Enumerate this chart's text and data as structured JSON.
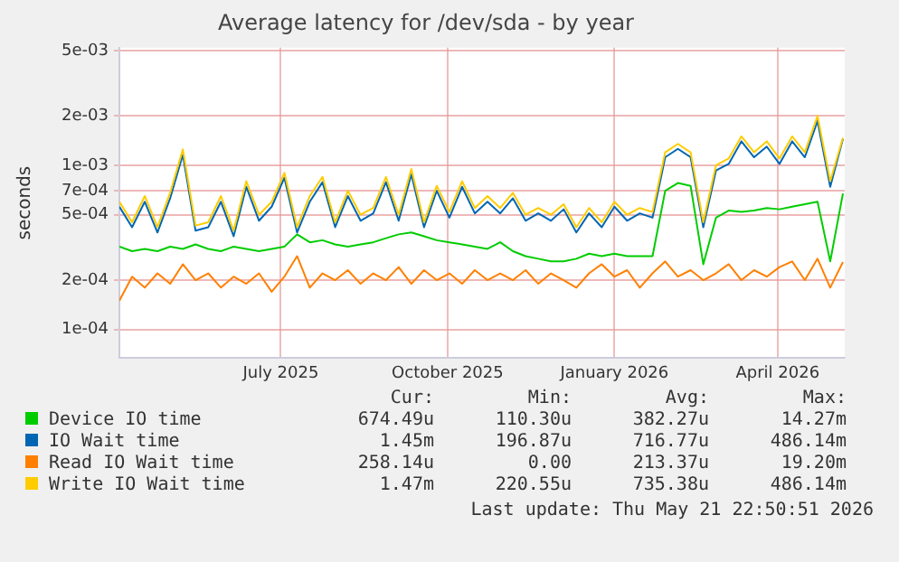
{
  "chart_data": {
    "type": "line",
    "title": "Average latency for /dev/sda - by year",
    "ylabel": "seconds",
    "log": "y",
    "grid": true,
    "legend": "bottom",
    "marker": "none",
    "line_style": "solid",
    "xlim": [
      "2025-04-17",
      "2026-05-22"
    ],
    "xticks": [
      {
        "value": "2025-07-15",
        "label": "July 2025"
      },
      {
        "value": "2025-10-15",
        "label": "October 2025"
      },
      {
        "value": "2026-01-15",
        "label": "January 2026"
      },
      {
        "value": "2026-04-15",
        "label": "April 2026"
      }
    ],
    "ylim": [
      6.7e-05,
      0.0052
    ],
    "yticks": [
      {
        "value": 0.0001,
        "label": "1e-04"
      },
      {
        "value": 0.0002,
        "label": "2e-04"
      },
      {
        "value": 0.0005,
        "label": "5e-04"
      },
      {
        "value": 0.0007,
        "label": "7e-04"
      },
      {
        "value": 0.001,
        "label": "1e-03"
      },
      {
        "value": 0.002,
        "label": "2e-03"
      },
      {
        "value": 0.005,
        "label": "5e-03"
      }
    ],
    "x": [
      "2025-04-17",
      "2025-04-24",
      "2025-05-01",
      "2025-05-08",
      "2025-05-15",
      "2025-05-22",
      "2025-05-29",
      "2025-06-05",
      "2025-06-12",
      "2025-06-19",
      "2025-06-26",
      "2025-07-03",
      "2025-07-10",
      "2025-07-17",
      "2025-07-24",
      "2025-07-31",
      "2025-08-07",
      "2025-08-14",
      "2025-08-21",
      "2025-08-28",
      "2025-09-04",
      "2025-09-11",
      "2025-09-18",
      "2025-09-25",
      "2025-10-02",
      "2025-10-09",
      "2025-10-16",
      "2025-10-23",
      "2025-10-30",
      "2025-11-06",
      "2025-11-13",
      "2025-11-20",
      "2025-11-27",
      "2025-12-04",
      "2025-12-11",
      "2025-12-18",
      "2025-12-25",
      "2026-01-01",
      "2026-01-08",
      "2026-01-15",
      "2026-01-22",
      "2026-01-29",
      "2026-02-05",
      "2026-02-12",
      "2026-02-19",
      "2026-02-26",
      "2026-03-05",
      "2026-03-12",
      "2026-03-19",
      "2026-03-26",
      "2026-04-02",
      "2026-04-09",
      "2026-04-16",
      "2026-04-23",
      "2026-04-30",
      "2026-05-07",
      "2026-05-14",
      "2026-05-21"
    ],
    "series": [
      {
        "name": "Device IO time",
        "color": "#00cc00",
        "values": [
          0.00032,
          0.0003,
          0.00031,
          0.0003,
          0.00032,
          0.00031,
          0.00033,
          0.00031,
          0.0003,
          0.00032,
          0.00031,
          0.0003,
          0.00031,
          0.00032,
          0.00038,
          0.00034,
          0.00035,
          0.00033,
          0.00032,
          0.00033,
          0.00034,
          0.00036,
          0.00038,
          0.00039,
          0.00037,
          0.00035,
          0.00034,
          0.00033,
          0.00032,
          0.00031,
          0.00034,
          0.0003,
          0.00028,
          0.00027,
          0.00026,
          0.00026,
          0.00027,
          0.00029,
          0.00028,
          0.00029,
          0.00028,
          0.00028,
          0.00028,
          0.0007,
          0.00078,
          0.00075,
          0.00025,
          0.00048,
          0.00053,
          0.00052,
          0.00053,
          0.00055,
          0.00054,
          0.00056,
          0.00058,
          0.0006,
          0.00026,
          0.000674
        ]
      },
      {
        "name": "IO Wait time",
        "color": "#0066b3",
        "values": [
          0.00056,
          0.00042,
          0.0006,
          0.00039,
          0.00063,
          0.00116,
          0.0004,
          0.00042,
          0.0006,
          0.00037,
          0.00074,
          0.00046,
          0.00056,
          0.00084,
          0.00039,
          0.0006,
          0.00079,
          0.00042,
          0.00065,
          0.00046,
          0.00051,
          0.00079,
          0.00046,
          0.00088,
          0.00042,
          0.0007,
          0.00048,
          0.00074,
          0.00051,
          0.0006,
          0.00051,
          0.00063,
          0.00046,
          0.00051,
          0.00046,
          0.00054,
          0.00039,
          0.00051,
          0.00042,
          0.00056,
          0.00046,
          0.00051,
          0.00048,
          0.00112,
          0.00126,
          0.00112,
          0.00042,
          0.00093,
          0.00102,
          0.0014,
          0.00112,
          0.0013,
          0.00102,
          0.0014,
          0.00112,
          0.00186,
          0.00074,
          0.00145
        ]
      },
      {
        "name": "Read IO Wait time",
        "color": "#ff8000",
        "values": [
          0.00015,
          0.00021,
          0.00018,
          0.00022,
          0.00019,
          0.00025,
          0.0002,
          0.00022,
          0.00018,
          0.00021,
          0.00019,
          0.00022,
          0.00017,
          0.00021,
          0.00028,
          0.00018,
          0.00022,
          0.0002,
          0.00023,
          0.00019,
          0.00022,
          0.0002,
          0.00024,
          0.00019,
          0.00023,
          0.0002,
          0.00022,
          0.00019,
          0.00023,
          0.0002,
          0.00022,
          0.0002,
          0.00023,
          0.00019,
          0.00022,
          0.0002,
          0.00018,
          0.00022,
          0.00025,
          0.00021,
          0.00023,
          0.00018,
          0.00022,
          0.00026,
          0.00021,
          0.00023,
          0.0002,
          0.00022,
          0.00025,
          0.0002,
          0.00023,
          0.00021,
          0.00024,
          0.00026,
          0.0002,
          0.00027,
          0.00018,
          0.000258
        ]
      },
      {
        "name": "Write IO Wait time",
        "color": "#ffcc00",
        "values": [
          0.0006,
          0.00045,
          0.00065,
          0.00042,
          0.00068,
          0.00125,
          0.00043,
          0.00045,
          0.00065,
          0.0004,
          0.0008,
          0.0005,
          0.0006,
          0.0009,
          0.00042,
          0.00065,
          0.00085,
          0.00045,
          0.0007,
          0.0005,
          0.00055,
          0.00085,
          0.0005,
          0.00095,
          0.00045,
          0.00075,
          0.00052,
          0.0008,
          0.00055,
          0.00065,
          0.00055,
          0.00068,
          0.0005,
          0.00055,
          0.0005,
          0.00058,
          0.00042,
          0.00055,
          0.00045,
          0.0006,
          0.0005,
          0.00055,
          0.00052,
          0.0012,
          0.00135,
          0.0012,
          0.00045,
          0.001,
          0.0011,
          0.0015,
          0.0012,
          0.0014,
          0.0011,
          0.0015,
          0.0012,
          0.002,
          0.0008,
          0.00147
        ]
      }
    ],
    "annotations": [
      "Cur:",
      "Min:",
      "Avg:",
      "Max:",
      "674.49u",
      "110.30u",
      "382.27u",
      "14.27m",
      "1.45m",
      "196.87u",
      "716.77u",
      "486.14m",
      "258.14u",
      "0.00",
      "213.37u",
      "19.20m",
      "1.47m",
      "220.55u",
      "735.38u",
      "486.14m",
      "Last update: Thu May 21 22:50:51 2026"
    ]
  }
}
